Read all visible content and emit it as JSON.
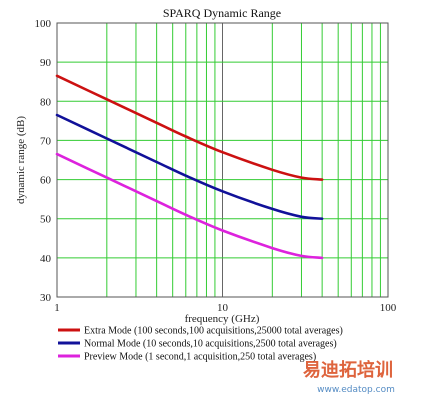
{
  "chart_data": {
    "type": "line",
    "title": "SPARQ Dynamic Range",
    "xlabel": "frequency (GHz)",
    "ylabel": "dynamic range (dB)",
    "xscale": "log",
    "xlim": [
      1,
      100
    ],
    "ylim": [
      30,
      100
    ],
    "xticks": [
      "1",
      "10",
      "100"
    ],
    "yticks": [
      "30",
      "40",
      "50",
      "60",
      "70",
      "80",
      "90",
      "100"
    ],
    "grid": true,
    "legend": "bottom",
    "x": [
      1,
      2,
      4,
      6,
      10,
      20,
      30,
      40
    ],
    "series": [
      {
        "name": "Extra Mode (100 seconds,100 acquisitions,25000 total averages)",
        "color": "#cc1111",
        "values": [
          86.5,
          80.5,
          74.5,
          71.0,
          67.0,
          62.5,
          60.5,
          60.0
        ]
      },
      {
        "name": "Normal Mode (10 seconds,10 acquisitions,2500 total averages)",
        "color": "#111199",
        "values": [
          76.5,
          70.5,
          64.5,
          61.0,
          57.0,
          52.5,
          50.5,
          50.0
        ]
      },
      {
        "name": "Preview Mode (1 second,1 acquisition,250 total averages)",
        "color": "#dd22dd",
        "values": [
          66.5,
          60.5,
          54.5,
          51.0,
          47.0,
          42.5,
          40.5,
          40.0
        ]
      }
    ]
  },
  "watermark": {
    "text": "易迪拓培训",
    "url": "www.edatop.com"
  }
}
